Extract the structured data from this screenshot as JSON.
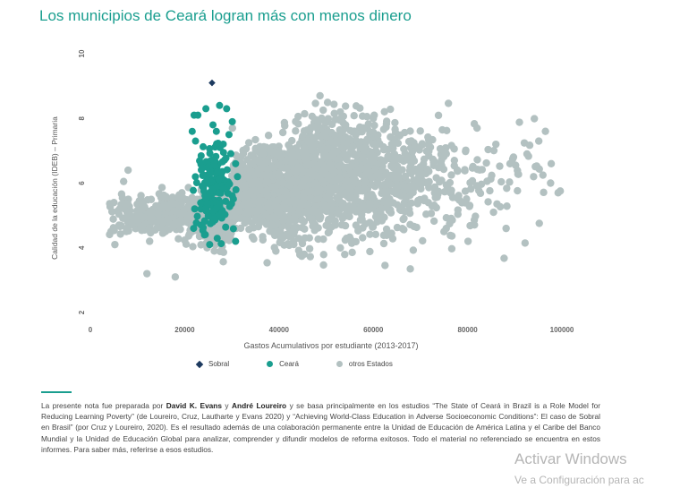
{
  "header": {
    "title": "Los municipios de Ceará logran más con menos dinero"
  },
  "chart_data": {
    "type": "scatter",
    "title": "Los municipios de Ceará logran más con menos dinero",
    "xlabel": "Gastos Acumulativos por estudiante (2013-2017)",
    "ylabel": "Calidad de la educación (IDEB) – Primaria",
    "xlim": [
      0,
      105000
    ],
    "ylim": [
      2,
      10
    ],
    "xticks": [
      "0",
      "20000",
      "40000",
      "60000",
      "80000",
      "100000"
    ],
    "xtick_values": [
      0,
      20000,
      40000,
      60000,
      80000,
      100000
    ],
    "yticks": [
      "2",
      "4",
      "6",
      "8",
      "10"
    ],
    "ytick_values": [
      2,
      4,
      6,
      8,
      10
    ],
    "grid": false,
    "legend_position": "bottom",
    "series": [
      {
        "name": "Sobral",
        "color": "#1d3a5f",
        "marker": "diamond",
        "points": [
          [
            25800,
            9.1
          ]
        ]
      },
      {
        "name": "Ceará",
        "color": "#1a9e8f",
        "marker": "circle",
        "cluster": {
          "x_range": [
            21000,
            31000
          ],
          "y_range": [
            4.1,
            8.6
          ],
          "center": [
            26500,
            5.9
          ],
          "count": 184
        },
        "points": [
          [
            22000,
            8.1
          ],
          [
            22800,
            8.1
          ],
          [
            24500,
            8.3
          ],
          [
            27400,
            8.4
          ],
          [
            28900,
            8.3
          ],
          [
            30100,
            7.9
          ],
          [
            21600,
            7.6
          ],
          [
            22300,
            7.3
          ],
          [
            26000,
            7.8
          ],
          [
            29400,
            7.5
          ],
          [
            30800,
            6.6
          ],
          [
            31200,
            6.2
          ],
          [
            21900,
            4.6
          ],
          [
            23500,
            4.7
          ],
          [
            24200,
            4.4
          ],
          [
            25300,
            4.1
          ],
          [
            30800,
            4.2
          ],
          [
            26200,
            4.9
          ],
          [
            28000,
            5.1
          ],
          [
            27300,
            5.7
          ]
        ]
      },
      {
        "name": "otros Estados",
        "color": "#b3c1c1",
        "marker": "circle",
        "cluster": {
          "x_range": [
            4000,
            100000
          ],
          "y_range": [
            2.8,
            8.7
          ],
          "center": [
            42000,
            5.8
          ],
          "count": 2600
        },
        "points": [
          [
            5000,
            5.4
          ],
          [
            5200,
            4.1
          ],
          [
            8000,
            6.4
          ],
          [
            9500,
            4.9
          ],
          [
            48700,
            8.7
          ],
          [
            95100,
            7.3
          ],
          [
            92600,
            6.9
          ],
          [
            94000,
            6.2
          ],
          [
            99200,
            5.7
          ],
          [
            97600,
            6.0
          ],
          [
            85500,
            5.1
          ],
          [
            80100,
            4.2
          ],
          [
            70200,
            6.3
          ],
          [
            86000,
            7.2
          ],
          [
            89000,
            6.6
          ],
          [
            75000,
            4.5
          ],
          [
            53000,
            8.2
          ],
          [
            60000,
            8.0
          ],
          [
            12000,
            3.2
          ],
          [
            18000,
            3.1
          ]
        ]
      }
    ]
  },
  "legend": {
    "items": [
      {
        "label": "Sobral",
        "color": "#1d3a5f"
      },
      {
        "label": "Ceará",
        "color": "#1a9e8f"
      },
      {
        "label": "otros Estados",
        "color": "#b3c1c1"
      }
    ]
  },
  "note": {
    "t1": "La presente nota fue preparada por ",
    "author1": "David K. Evans",
    "t2": " y ",
    "author2": "André Loureiro",
    "t3": " y se basa principalmente en los estudios “The State of Ceará in Brazil is a Role Model for Reducing Learning Poverty” (de Loureiro, Cruz, Lautharte y Evans 2020) y “Achieving World-Class Education in Adverse Socioeconomic Conditions”: El caso de Sobral en Brasil” (por Cruz y Loureiro, 2020). Es el resultado además de una colaboración permanente entre la Unidad de Educación de América Latina y el Caribe del Banco Mundial y la Unidad de Educación Global para analizar, comprender y difundir modelos de reforma exitosos. Todo el material no referenciado se encuentra en estos informes. Para saber más, referirse a esos estudios."
  },
  "watermark": {
    "line1": "Activar Windows",
    "line2": "Ve a Configuración para ac"
  }
}
